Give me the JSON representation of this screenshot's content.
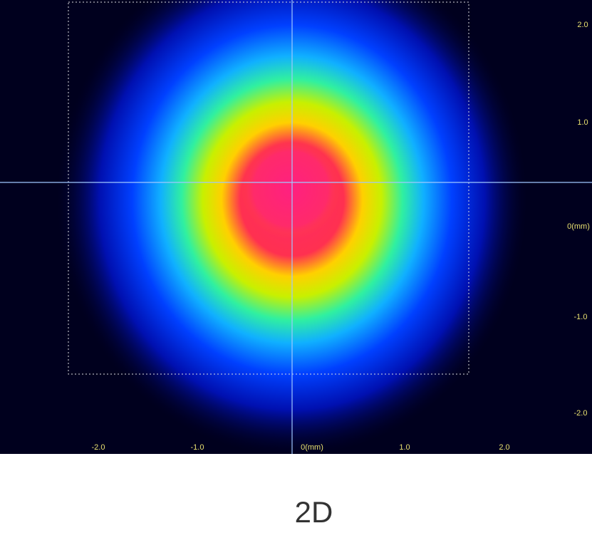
{
  "y_axis_labels": [
    "2.0",
    "1.0",
    "0(mm)",
    "-1.0",
    "-2.0"
  ],
  "x_axis_labels": [
    "-2.0",
    "-1.0",
    "0(mm)",
    "1.0",
    "2.0"
  ],
  "caption": "2D"
}
